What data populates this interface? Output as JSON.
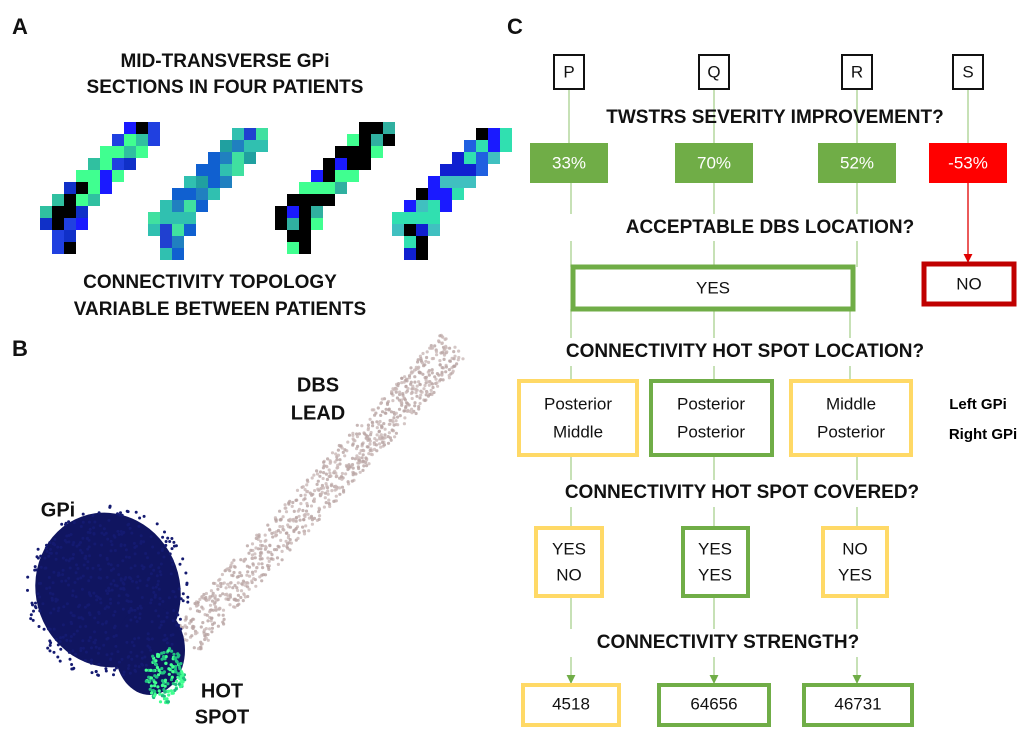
{
  "panel_a": {
    "label": "A",
    "title_lines": [
      "MID-TRANSVERSE GPi",
      "SECTIONS IN FOUR PATIENTS"
    ],
    "caption_lines": [
      "CONNECTIVITY TOPOLOGY",
      "VARIABLE BETWEEN PATIENTS"
    ]
  },
  "panel_b": {
    "label": "B",
    "lead_lines": [
      "DBS",
      "LEAD"
    ],
    "gpi_label": "GPi",
    "hotspot_lines": [
      "HOT",
      "SPOT"
    ]
  },
  "panel_c": {
    "label": "C",
    "patients": [
      "P",
      "Q",
      "R",
      "S"
    ],
    "questions": [
      "TWSTRS SEVERITY IMPROVEMENT?",
      "ACCEPTABLE DBS LOCATION?",
      "CONNECTIVITY HOT SPOT LOCATION?",
      "CONNECTIVITY HOT SPOT COVERED?",
      "CONNECTIVITY STRENGTH?"
    ],
    "improvements": [
      "33%",
      "70%",
      "52%",
      "-53%"
    ],
    "location_answers": [
      "YES",
      "NO"
    ],
    "hotspot_locations": [
      [
        "Posterior",
        "Middle"
      ],
      [
        "Posterior",
        "Posterior"
      ],
      [
        "Middle",
        "Posterior"
      ]
    ],
    "side_legend": [
      "Left GPi",
      "Right GPi"
    ],
    "hotspot_covered": [
      [
        "YES",
        "NO"
      ],
      [
        "YES",
        "YES"
      ],
      [
        "NO",
        "YES"
      ]
    ],
    "strengths": [
      "4518",
      "64656",
      "46731"
    ]
  }
}
